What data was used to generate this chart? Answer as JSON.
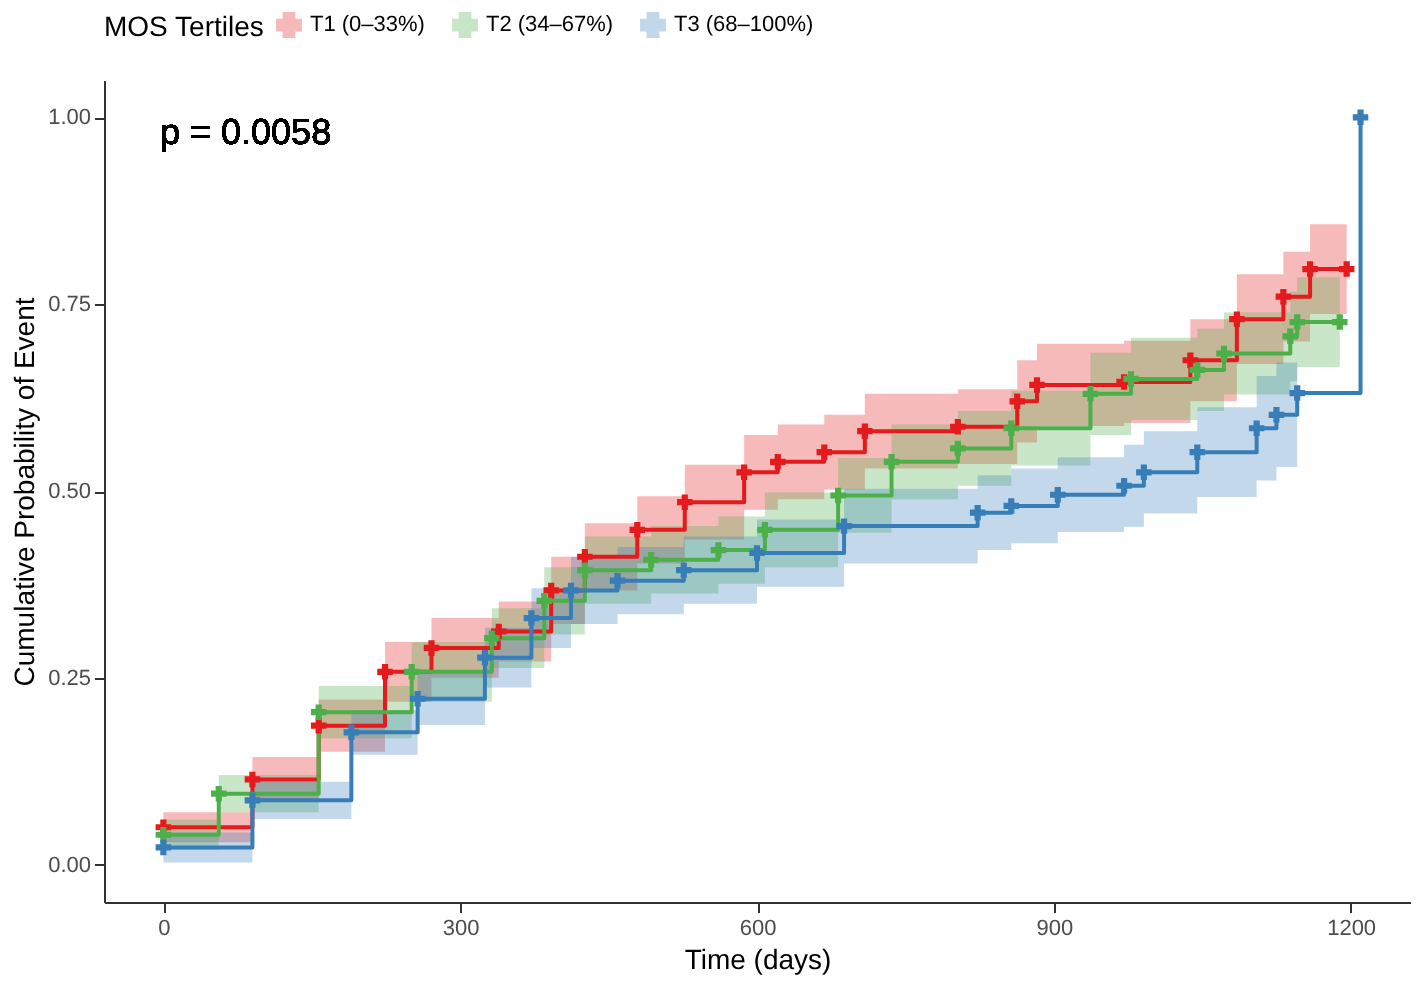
{
  "chart_data": {
    "type": "step",
    "xlabel": "Time (days)",
    "ylabel": "Cumulative Probability of Event",
    "legend_title": "MOS Tertiles",
    "legend": "top",
    "grid": false,
    "marker": "cross",
    "line_style": "solid",
    "xlim": [
      -60,
      1260
    ],
    "ylim": [
      -0.05,
      1.05
    ],
    "xticks": [
      0,
      300,
      600,
      900,
      1200
    ],
    "yticks": [
      {
        "value": 0,
        "label": "0.00"
      },
      {
        "value": 0.25,
        "label": "0.25"
      },
      {
        "value": 0.5,
        "label": "0.50"
      },
      {
        "value": 0.75,
        "label": "0.75"
      },
      {
        "value": 1,
        "label": "1.00"
      }
    ],
    "annotations": [
      "p = 0.0058"
    ],
    "series": [
      {
        "name": "T1 (0–33%)",
        "color": "#e41a1c",
        "x": [
          0,
          90,
          157,
          224,
          271,
          339,
          392,
          426,
          479,
          527,
          587,
          621,
          668,
          709,
          803,
          863,
          883,
          971,
          1038,
          1085,
          1132,
          1159,
          1196
        ],
        "values": [
          0.05,
          0.114,
          0.186,
          0.258,
          0.29,
          0.312,
          0.367,
          0.412,
          0.448,
          0.485,
          0.525,
          0.539,
          0.552,
          0.58,
          0.586,
          0.62,
          0.642,
          0.646,
          0.675,
          0.73,
          0.76,
          0.797,
          0.797
        ],
        "lower": [
          0.03,
          0.084,
          0.151,
          0.218,
          0.25,
          0.272,
          0.322,
          0.367,
          0.403,
          0.435,
          0.475,
          0.489,
          0.502,
          0.53,
          0.536,
          0.565,
          0.587,
          0.591,
          0.62,
          0.67,
          0.7,
          0.737,
          0.737
        ],
        "upper": [
          0.07,
          0.144,
          0.221,
          0.298,
          0.33,
          0.352,
          0.412,
          0.457,
          0.493,
          0.535,
          0.575,
          0.589,
          0.602,
          0.63,
          0.636,
          0.675,
          0.697,
          0.701,
          0.73,
          0.79,
          0.82,
          0.857,
          0.857
        ]
      },
      {
        "name": "T2 (34–67%)",
        "color": "#4daf4a",
        "x": [
          0,
          56,
          157,
          251,
          332,
          385,
          426,
          493,
          561,
          608,
          682,
          736,
          803,
          857,
          937,
          978,
          1045,
          1072,
          1139,
          1146,
          1189
        ],
        "values": [
          0.04,
          0.095,
          0.204,
          0.258,
          0.303,
          0.353,
          0.394,
          0.408,
          0.421,
          0.448,
          0.494,
          0.539,
          0.557,
          0.584,
          0.63,
          0.65,
          0.662,
          0.684,
          0.707,
          0.726,
          0.726
        ],
        "lower": [
          0.02,
          0.07,
          0.169,
          0.218,
          0.263,
          0.308,
          0.349,
          0.363,
          0.376,
          0.398,
          0.444,
          0.489,
          0.507,
          0.534,
          0.575,
          0.595,
          0.607,
          0.629,
          0.647,
          0.666,
          0.666
        ],
        "upper": [
          0.06,
          0.12,
          0.239,
          0.298,
          0.343,
          0.398,
          0.439,
          0.453,
          0.466,
          0.498,
          0.544,
          0.589,
          0.607,
          0.634,
          0.685,
          0.705,
          0.717,
          0.739,
          0.767,
          0.786,
          0.786
        ]
      },
      {
        "name": "T3 (68–100%)",
        "color": "#377eb8",
        "x": [
          0,
          90,
          190,
          257,
          325,
          372,
          412,
          459,
          526,
          600,
          688,
          823,
          857,
          904,
          971,
          991,
          1045,
          1105,
          1125,
          1146,
          1210
        ],
        "values": [
          0.023,
          0.086,
          0.177,
          0.222,
          0.277,
          0.33,
          0.367,
          0.38,
          0.394,
          0.417,
          0.453,
          0.471,
          0.48,
          0.495,
          0.507,
          0.525,
          0.552,
          0.584,
          0.602,
          0.631,
          1.0
        ],
        "lower": [
          0.003,
          0.061,
          0.147,
          0.187,
          0.237,
          0.29,
          0.322,
          0.335,
          0.349,
          0.372,
          0.403,
          0.421,
          0.43,
          0.445,
          0.452,
          0.47,
          0.492,
          0.514,
          0.532,
          0.541,
          null
        ],
        "upper": [
          0.043,
          0.111,
          0.207,
          0.257,
          0.317,
          0.37,
          0.412,
          0.425,
          0.439,
          0.462,
          0.503,
          0.521,
          0.53,
          0.545,
          0.562,
          0.58,
          0.612,
          0.654,
          0.672,
          0.721,
          null
        ]
      }
    ]
  }
}
